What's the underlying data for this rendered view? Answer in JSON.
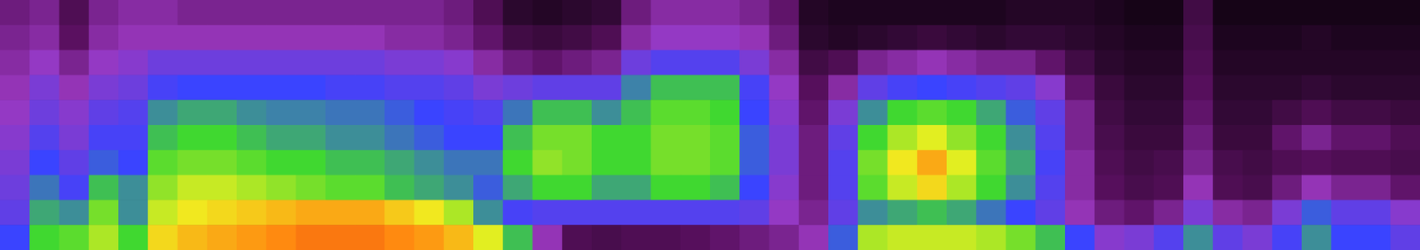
{
  "chart_data": {
    "type": "heatmap",
    "tick_labels": false,
    "zlim": [
      0,
      100
    ],
    "cells": [
      [
        28,
        30,
        22,
        30,
        32,
        32,
        30,
        30,
        30,
        30,
        30,
        30,
        30,
        30,
        30,
        28,
        22,
        12,
        10,
        12,
        14,
        28,
        32,
        32,
        32,
        30,
        26,
        10,
        8,
        8,
        8,
        8,
        8,
        8,
        10,
        10,
        10,
        8,
        6,
        6,
        18,
        6,
        6,
        6,
        6,
        6,
        6,
        6
      ],
      [
        30,
        32,
        25,
        32,
        34,
        34,
        34,
        34,
        34,
        34,
        34,
        34,
        34,
        32,
        32,
        30,
        26,
        18,
        16,
        18,
        22,
        32,
        36,
        36,
        36,
        34,
        28,
        12,
        10,
        12,
        14,
        16,
        14,
        12,
        14,
        14,
        12,
        10,
        8,
        8,
        20,
        8,
        8,
        8,
        10,
        8,
        8,
        8
      ],
      [
        32,
        36,
        30,
        36,
        38,
        42,
        42,
        42,
        42,
        42,
        42,
        42,
        42,
        40,
        40,
        38,
        32,
        28,
        26,
        28,
        30,
        42,
        46,
        46,
        46,
        40,
        32,
        18,
        22,
        30,
        32,
        34,
        32,
        30,
        30,
        26,
        18,
        12,
        10,
        10,
        22,
        10,
        10,
        10,
        10,
        10,
        10,
        10
      ],
      [
        34,
        40,
        34,
        40,
        42,
        48,
        50,
        50,
        50,
        50,
        50,
        48,
        48,
        46,
        46,
        44,
        40,
        42,
        44,
        44,
        44,
        55,
        60,
        60,
        60,
        48,
        36,
        24,
        32,
        44,
        48,
        50,
        48,
        46,
        44,
        38,
        26,
        16,
        12,
        12,
        24,
        12,
        12,
        12,
        14,
        12,
        12,
        12
      ],
      [
        36,
        42,
        38,
        44,
        46,
        56,
        58,
        58,
        56,
        55,
        55,
        54,
        54,
        52,
        50,
        48,
        46,
        54,
        60,
        60,
        56,
        60,
        64,
        64,
        62,
        50,
        38,
        26,
        40,
        56,
        62,
        64,
        62,
        58,
        52,
        44,
        30,
        18,
        14,
        14,
        26,
        14,
        14,
        18,
        22,
        18,
        18,
        16
      ],
      [
        38,
        46,
        40,
        48,
        48,
        60,
        62,
        62,
        60,
        58,
        58,
        56,
        56,
        54,
        52,
        50,
        50,
        60,
        66,
        66,
        62,
        62,
        66,
        66,
        64,
        52,
        40,
        28,
        44,
        62,
        70,
        74,
        68,
        62,
        56,
        46,
        30,
        20,
        16,
        16,
        28,
        16,
        16,
        26,
        30,
        26,
        26,
        22
      ],
      [
        40,
        50,
        44,
        52,
        50,
        64,
        66,
        66,
        64,
        62,
        62,
        60,
        60,
        58,
        56,
        54,
        54,
        62,
        68,
        66,
        62,
        62,
        66,
        66,
        64,
        52,
        40,
        28,
        46,
        66,
        76,
        84,
        74,
        64,
        58,
        48,
        32,
        22,
        18,
        20,
        30,
        20,
        18,
        22,
        24,
        22,
        22,
        20
      ],
      [
        42,
        54,
        48,
        60,
        56,
        68,
        72,
        72,
        70,
        68,
        66,
        64,
        64,
        60,
        58,
        56,
        52,
        58,
        62,
        62,
        58,
        58,
        62,
        62,
        60,
        50,
        38,
        28,
        46,
        64,
        72,
        78,
        70,
        62,
        56,
        46,
        32,
        24,
        20,
        22,
        34,
        22,
        20,
        28,
        34,
        30,
        30,
        26
      ],
      [
        44,
        58,
        56,
        66,
        56,
        72,
        76,
        78,
        80,
        82,
        84,
        84,
        84,
        80,
        76,
        70,
        56,
        48,
        46,
        46,
        46,
        46,
        46,
        46,
        46,
        44,
        36,
        30,
        44,
        56,
        58,
        60,
        58,
        54,
        50,
        44,
        34,
        28,
        26,
        30,
        40,
        32,
        30,
        40,
        52,
        44,
        44,
        38
      ],
      [
        50,
        62,
        64,
        70,
        62,
        78,
        82,
        84,
        86,
        88,
        90,
        90,
        90,
        88,
        86,
        82,
        74,
        60,
        34,
        22,
        20,
        22,
        22,
        24,
        26,
        28,
        30,
        34,
        52,
        70,
        72,
        72,
        72,
        70,
        66,
        60,
        50,
        38,
        40,
        46,
        56,
        44,
        40,
        48,
        56,
        50,
        50,
        44
      ]
    ]
  }
}
